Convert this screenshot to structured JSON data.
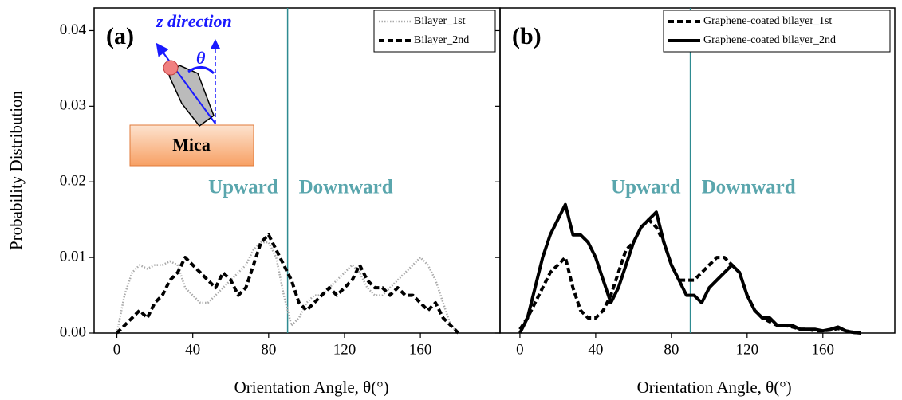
{
  "chart_data": [
    {
      "type": "line",
      "panel_label": "(a)",
      "ylabel": "Probability Distribution",
      "xlabel": "Orientation Angle, θ(°)",
      "x": [
        0,
        4,
        8,
        12,
        16,
        20,
        24,
        28,
        32,
        36,
        40,
        44,
        48,
        52,
        56,
        60,
        64,
        68,
        72,
        76,
        80,
        84,
        88,
        92,
        96,
        100,
        104,
        108,
        112,
        116,
        120,
        124,
        128,
        132,
        136,
        140,
        144,
        148,
        152,
        156,
        160,
        164,
        168,
        172,
        176,
        180
      ],
      "series": [
        {
          "name": "Bilayer_1st",
          "color": "#aaaaaa",
          "style": "dotted",
          "values": [
            0,
            0.005,
            0.008,
            0.009,
            0.0085,
            0.009,
            0.009,
            0.0095,
            0.009,
            0.006,
            0.005,
            0.004,
            0.004,
            0.005,
            0.006,
            0.007,
            0.008,
            0.009,
            0.011,
            0.012,
            0.012,
            0.01,
            0.005,
            0.001,
            0.002,
            0.004,
            0.005,
            0.005,
            0.006,
            0.007,
            0.008,
            0.009,
            0.008,
            0.006,
            0.005,
            0.005,
            0.006,
            0.007,
            0.008,
            0.009,
            0.01,
            0.009,
            0.007,
            0.004,
            0.001,
            0
          ]
        },
        {
          "name": "Bilayer_2nd",
          "color": "#000000",
          "style": "dashed",
          "values": [
            0,
            0.001,
            0.002,
            0.003,
            0.002,
            0.004,
            0.005,
            0.007,
            0.008,
            0.01,
            0.009,
            0.008,
            0.007,
            0.006,
            0.008,
            0.007,
            0.005,
            0.006,
            0.009,
            0.012,
            0.013,
            0.011,
            0.009,
            0.007,
            0.004,
            0.003,
            0.004,
            0.005,
            0.006,
            0.005,
            0.006,
            0.007,
            0.009,
            0.007,
            0.006,
            0.006,
            0.005,
            0.006,
            0.005,
            0.005,
            0.004,
            0.003,
            0.004,
            0.002,
            0.001,
            0
          ]
        }
      ],
      "xlim": [
        -12,
        202
      ],
      "ylim": [
        0,
        0.043
      ],
      "xticks": [
        0,
        40,
        80,
        120,
        160
      ],
      "yticks": [
        {
          "value": 0,
          "label": "0.00"
        },
        0.01,
        0.02,
        0.03,
        0.04
      ],
      "vline": 90,
      "vline_color": "#2e8b91",
      "region_labels": [
        "Upward",
        "Downward"
      ],
      "region_color": "#5aa6ad",
      "legend": "upper right",
      "inset": {
        "axis_label": "z direction",
        "angle_label": "θ",
        "substrate": "Mica"
      }
    },
    {
      "type": "line",
      "panel_label": "(b)",
      "xlabel": "Orientation Angle, θ(°)",
      "x": [
        0,
        4,
        8,
        12,
        16,
        20,
        24,
        28,
        32,
        36,
        40,
        44,
        48,
        52,
        56,
        60,
        64,
        68,
        72,
        76,
        80,
        84,
        88,
        92,
        96,
        100,
        104,
        108,
        112,
        116,
        120,
        124,
        128,
        132,
        136,
        140,
        144,
        148,
        152,
        156,
        160,
        164,
        168,
        172,
        176,
        180
      ],
      "series": [
        {
          "name": "Graphene-coated bilayer_1st",
          "color": "#000000",
          "style": "dashed",
          "values": [
            0.0005,
            0.002,
            0.004,
            0.006,
            0.008,
            0.009,
            0.01,
            0.006,
            0.003,
            0.002,
            0.002,
            0.003,
            0.005,
            0.008,
            0.011,
            0.012,
            0.014,
            0.015,
            0.014,
            0.012,
            0.009,
            0.007,
            0.007,
            0.007,
            0.008,
            0.009,
            0.01,
            0.01,
            0.009,
            0.008,
            0.005,
            0.003,
            0.002,
            0.0015,
            0.001,
            0.001,
            0.0008,
            0.0005,
            0.0005,
            0.0003,
            0.0003,
            0.0004,
            0.0006,
            0.0003,
            0.0001,
            0
          ]
        },
        {
          "name": "Graphene-coated bilayer_2nd",
          "color": "#000000",
          "style": "solid",
          "values": [
            0,
            0.002,
            0.006,
            0.01,
            0.013,
            0.015,
            0.017,
            0.013,
            0.013,
            0.012,
            0.01,
            0.007,
            0.004,
            0.006,
            0.009,
            0.012,
            0.014,
            0.015,
            0.016,
            0.012,
            0.009,
            0.007,
            0.005,
            0.005,
            0.004,
            0.006,
            0.007,
            0.008,
            0.009,
            0.008,
            0.005,
            0.003,
            0.002,
            0.002,
            0.001,
            0.001,
            0.001,
            0.0005,
            0.0005,
            0.0005,
            0.0003,
            0.0005,
            0.0008,
            0.0003,
            0.0001,
            0
          ]
        }
      ],
      "xlim": [
        -10.5,
        198
      ],
      "ylim": [
        0,
        0.043
      ],
      "xticks": [
        0,
        40,
        80,
        120,
        160
      ],
      "yticks": [
        0,
        0.01,
        0.02,
        0.03,
        0.04
      ],
      "vline": 90,
      "vline_color": "#2e8b91",
      "region_labels": [
        "Upward",
        "Downward"
      ],
      "region_color": "#5aa6ad",
      "legend": "upper right"
    }
  ]
}
